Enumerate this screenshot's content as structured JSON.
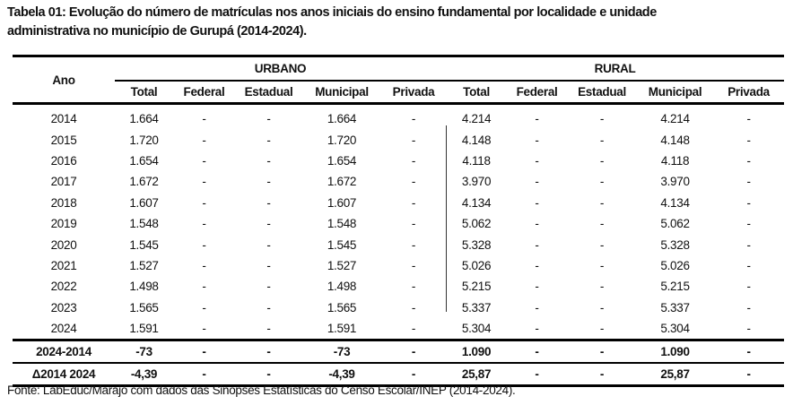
{
  "title": {
    "line1": "Tabela 01: Evolução do número de matrículas nos anos iniciais do ensino fundamental por localidade e unidade",
    "line2": "administrativa no município de Gurupá (2014-2024)."
  },
  "table": {
    "year_header": "Ano",
    "groups": [
      "URBANO",
      "RURAL"
    ],
    "subheaders": [
      "Total",
      "Federal",
      "Estadual",
      "Municipal",
      "Privada",
      "Total",
      "Federal",
      "Estadual",
      "Municipal",
      "Privada"
    ],
    "rows": [
      [
        "2014",
        "1.664",
        "-",
        "-",
        "1.664",
        "-",
        "4.214",
        "-",
        "-",
        "4.214",
        "-"
      ],
      [
        "2015",
        "1.720",
        "-",
        "-",
        "1.720",
        "-",
        "4.148",
        "-",
        "-",
        "4.148",
        "-"
      ],
      [
        "2016",
        "1.654",
        "-",
        "-",
        "1.654",
        "-",
        "4.118",
        "-",
        "-",
        "4.118",
        "-"
      ],
      [
        "2017",
        "1.672",
        "-",
        "-",
        "1.672",
        "-",
        "3.970",
        "-",
        "-",
        "3.970",
        "-"
      ],
      [
        "2018",
        "1.607",
        "-",
        "-",
        "1.607",
        "-",
        "4.134",
        "-",
        "-",
        "4.134",
        "-"
      ],
      [
        "2019",
        "1.548",
        "-",
        "-",
        "1.548",
        "-",
        "5.062",
        "-",
        "-",
        "5.062",
        "-"
      ],
      [
        "2020",
        "1.545",
        "-",
        "-",
        "1.545",
        "-",
        "5.328",
        "-",
        "-",
        "5.328",
        "-"
      ],
      [
        "2021",
        "1.527",
        "-",
        "-",
        "1.527",
        "-",
        "5.026",
        "-",
        "-",
        "5.026",
        "-"
      ],
      [
        "2022",
        "1.498",
        "-",
        "-",
        "1.498",
        "-",
        "5.215",
        "-",
        "-",
        "5.215",
        "-"
      ],
      [
        "2023",
        "1.565",
        "-",
        "-",
        "1.565",
        "-",
        "5.337",
        "-",
        "-",
        "5.337",
        "-"
      ],
      [
        "2024",
        "1.591",
        "-",
        "-",
        "1.591",
        "-",
        "5.304",
        "-",
        "-",
        "5.304",
        "-"
      ]
    ],
    "summary_rows": [
      [
        "2024-2014",
        "-73",
        "-",
        "-",
        "-73",
        "-",
        "1.090",
        "-",
        "-",
        "1.090",
        "-"
      ],
      [
        "Δ2014 2024",
        "-4,39",
        "-",
        "-",
        "-4,39",
        "-",
        "25,87",
        "-",
        "-",
        "25,87",
        "-"
      ]
    ]
  },
  "footer": "Fonte: LabEduc/Marajó com dados das Sinopses Estatísticas do Censo Escolar/INEP (2014-2024)."
}
